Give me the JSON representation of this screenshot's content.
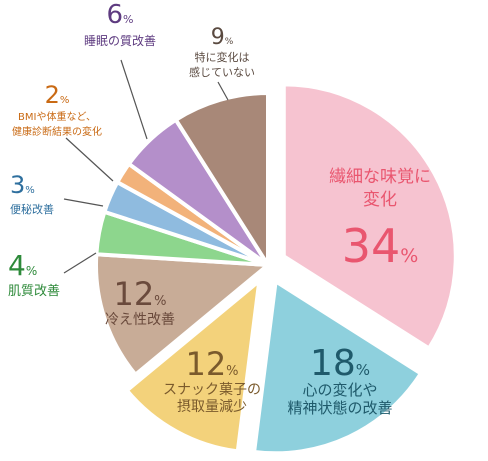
{
  "chart_data": {
    "type": "pie",
    "title": "",
    "unit": "%",
    "slices": [
      {
        "name": "繊細な味覚に変化",
        "lines": [
          "繊細な味覚に",
          "変化"
        ],
        "value": 34,
        "color": "#f6c3d0",
        "text_color": "#e9566f",
        "exploded": true
      },
      {
        "name": "心の変化や精神状態の改善",
        "lines": [
          "心の変化や",
          "精神状態の改善"
        ],
        "value": 18,
        "color": "#8ed0dd",
        "text_color": "#1f5a6b",
        "exploded": true
      },
      {
        "name": "スナック菓子の摂取量減少",
        "lines": [
          "スナック菓子の",
          "摂取量減少"
        ],
        "value": 12,
        "color": "#f3d27b",
        "text_color": "#7a5a2c",
        "exploded": true
      },
      {
        "name": "冷え性改善",
        "lines": [
          "冷え性改善"
        ],
        "value": 12,
        "color": "#c8ac97",
        "text_color": "#6a4a3c",
        "exploded": false
      },
      {
        "name": "肌質改善",
        "lines": [
          "肌質改善"
        ],
        "value": 4,
        "color": "#8dd68d",
        "text_color": "#2e8a3a",
        "exploded": false
      },
      {
        "name": "便秘改善",
        "lines": [
          "便秘改善"
        ],
        "value": 3,
        "color": "#8fbbdf",
        "text_color": "#2e6f9e",
        "exploded": false
      },
      {
        "name": "BMIや体重など、健康診断結果の変化",
        "lines": [
          "BMIや体重など、",
          "健康診断結果の変化"
        ],
        "value": 2,
        "color": "#f2b27a",
        "text_color": "#c96a14",
        "exploded": false
      },
      {
        "name": "睡眠の質改善",
        "lines": [
          "睡眠の質改善"
        ],
        "value": 6,
        "color": "#b48fca",
        "text_color": "#5e3b80",
        "exploded": false
      },
      {
        "name": "特に変化は感じていない",
        "lines": [
          "特に変化は",
          "感じていない"
        ],
        "value": 9,
        "color": "#a88878",
        "text_color": "#5a4a40",
        "exploded": false
      }
    ]
  }
}
